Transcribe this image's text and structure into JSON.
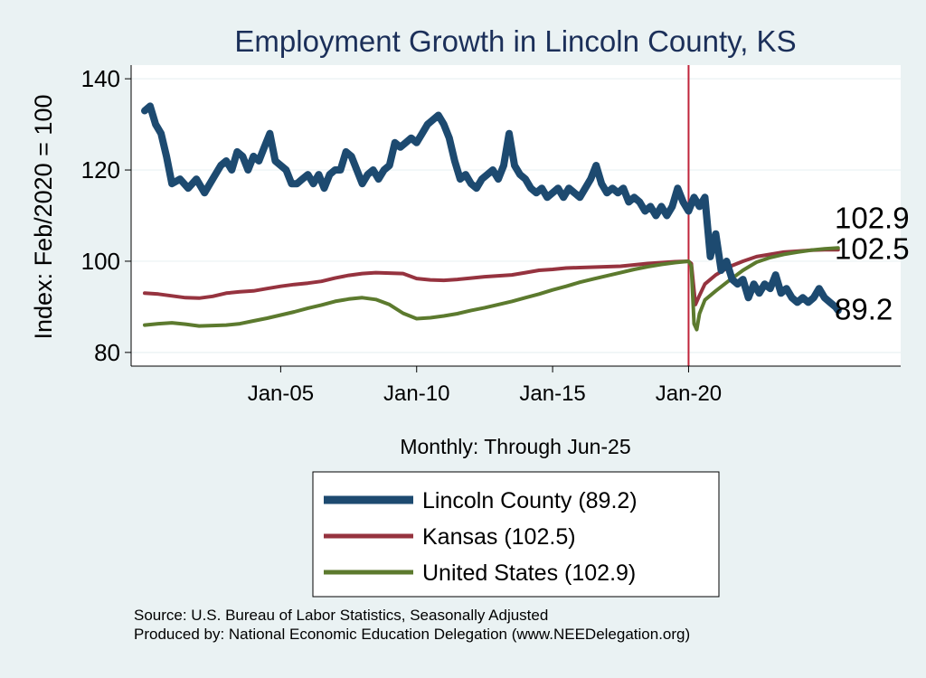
{
  "chart_data": {
    "type": "line",
    "title": "Employment Growth in Lincoln  County, KS",
    "xlabel": "Monthly: Through Jun-25",
    "ylabel": "Index: Feb/2020 = 100",
    "ylim": [
      77,
      143
    ],
    "xlim": [
      1999.5,
      2027.8
    ],
    "yticks": [
      80,
      100,
      120,
      140
    ],
    "xticks": [
      {
        "label": "Jan-05",
        "value": 2005.0
      },
      {
        "label": "Jan-10",
        "value": 2010.0
      },
      {
        "label": "Jan-15",
        "value": 2015.0
      },
      {
        "label": "Jan-20",
        "value": 2020.0
      }
    ],
    "grid": true,
    "reference_line": {
      "x": 2020.0,
      "color": "#c0243b"
    },
    "legend_position": "bottom",
    "series": [
      {
        "name": "Lincoln  County",
        "legend_label": "Lincoln  County (89.2)",
        "end_label": "89.2",
        "color": "#1d4a70",
        "width": 8,
        "points": [
          [
            2000.0,
            133
          ],
          [
            2000.2,
            134
          ],
          [
            2000.4,
            130
          ],
          [
            2000.6,
            128
          ],
          [
            2000.8,
            123
          ],
          [
            2001.0,
            117
          ],
          [
            2001.3,
            118
          ],
          [
            2001.6,
            116
          ],
          [
            2001.9,
            118
          ],
          [
            2002.2,
            115
          ],
          [
            2002.5,
            118
          ],
          [
            2002.8,
            121
          ],
          [
            2003.0,
            122
          ],
          [
            2003.2,
            120
          ],
          [
            2003.4,
            124
          ],
          [
            2003.6,
            123
          ],
          [
            2003.8,
            120
          ],
          [
            2004.0,
            123
          ],
          [
            2004.2,
            122
          ],
          [
            2004.4,
            125
          ],
          [
            2004.6,
            128
          ],
          [
            2004.8,
            122
          ],
          [
            2005.0,
            121
          ],
          [
            2005.2,
            120
          ],
          [
            2005.4,
            117
          ],
          [
            2005.6,
            117
          ],
          [
            2005.8,
            118
          ],
          [
            2006.0,
            119
          ],
          [
            2006.2,
            117
          ],
          [
            2006.4,
            119
          ],
          [
            2006.6,
            116
          ],
          [
            2006.8,
            119
          ],
          [
            2007.0,
            120
          ],
          [
            2007.2,
            120
          ],
          [
            2007.4,
            124
          ],
          [
            2007.6,
            123
          ],
          [
            2007.8,
            120
          ],
          [
            2008.0,
            117
          ],
          [
            2008.2,
            119
          ],
          [
            2008.4,
            120
          ],
          [
            2008.6,
            118
          ],
          [
            2008.8,
            120
          ],
          [
            2009.0,
            121
          ],
          [
            2009.2,
            126
          ],
          [
            2009.4,
            125
          ],
          [
            2009.6,
            126
          ],
          [
            2009.8,
            127
          ],
          [
            2010.0,
            126
          ],
          [
            2010.2,
            128
          ],
          [
            2010.4,
            130
          ],
          [
            2010.6,
            131
          ],
          [
            2010.8,
            132
          ],
          [
            2011.0,
            130
          ],
          [
            2011.2,
            127
          ],
          [
            2011.4,
            122
          ],
          [
            2011.6,
            118
          ],
          [
            2011.8,
            119
          ],
          [
            2012.0,
            117
          ],
          [
            2012.2,
            116
          ],
          [
            2012.4,
            118
          ],
          [
            2012.6,
            119
          ],
          [
            2012.8,
            120
          ],
          [
            2013.0,
            118
          ],
          [
            2013.2,
            121
          ],
          [
            2013.4,
            128
          ],
          [
            2013.6,
            121
          ],
          [
            2013.8,
            119
          ],
          [
            2014.0,
            118
          ],
          [
            2014.2,
            116
          ],
          [
            2014.4,
            115
          ],
          [
            2014.6,
            116
          ],
          [
            2014.8,
            114
          ],
          [
            2015.0,
            115
          ],
          [
            2015.2,
            116
          ],
          [
            2015.4,
            114
          ],
          [
            2015.6,
            116
          ],
          [
            2015.8,
            115
          ],
          [
            2016.0,
            114
          ],
          [
            2016.2,
            116
          ],
          [
            2016.4,
            118
          ],
          [
            2016.6,
            121
          ],
          [
            2016.8,
            117
          ],
          [
            2017.0,
            115
          ],
          [
            2017.2,
            116
          ],
          [
            2017.4,
            115
          ],
          [
            2017.6,
            116
          ],
          [
            2017.8,
            113
          ],
          [
            2018.0,
            114
          ],
          [
            2018.2,
            113
          ],
          [
            2018.4,
            111
          ],
          [
            2018.6,
            112
          ],
          [
            2018.8,
            110
          ],
          [
            2019.0,
            112
          ],
          [
            2019.2,
            110
          ],
          [
            2019.4,
            112
          ],
          [
            2019.6,
            116
          ],
          [
            2019.8,
            113
          ],
          [
            2020.0,
            111
          ],
          [
            2020.2,
            114
          ],
          [
            2020.4,
            112
          ],
          [
            2020.6,
            114
          ],
          [
            2020.8,
            101
          ],
          [
            2021.0,
            106
          ],
          [
            2021.2,
            98
          ],
          [
            2021.4,
            100
          ],
          [
            2021.6,
            96
          ],
          [
            2021.8,
            95
          ],
          [
            2022.0,
            96
          ],
          [
            2022.2,
            92
          ],
          [
            2022.4,
            95
          ],
          [
            2022.6,
            93
          ],
          [
            2022.8,
            95
          ],
          [
            2023.0,
            94
          ],
          [
            2023.2,
            97
          ],
          [
            2023.4,
            93
          ],
          [
            2023.6,
            94
          ],
          [
            2023.8,
            92
          ],
          [
            2024.0,
            91
          ],
          [
            2024.2,
            92
          ],
          [
            2024.4,
            91
          ],
          [
            2024.6,
            92
          ],
          [
            2024.8,
            94
          ],
          [
            2025.0,
            92
          ],
          [
            2025.2,
            91
          ],
          [
            2025.4,
            90
          ],
          [
            2025.5,
            89.2
          ]
        ]
      },
      {
        "name": "Kansas",
        "legend_label": "Kansas (102.5)",
        "end_label": "102.5",
        "color": "#96333f",
        "width": 4,
        "points": [
          [
            2000.0,
            93
          ],
          [
            2000.5,
            92.8
          ],
          [
            2001.0,
            92.4
          ],
          [
            2001.5,
            92.0
          ],
          [
            2002.0,
            91.9
          ],
          [
            2002.5,
            92.3
          ],
          [
            2003.0,
            93.0
          ],
          [
            2003.5,
            93.3
          ],
          [
            2004.0,
            93.5
          ],
          [
            2004.5,
            94.0
          ],
          [
            2005.0,
            94.5
          ],
          [
            2005.5,
            94.9
          ],
          [
            2006.0,
            95.2
          ],
          [
            2006.5,
            95.6
          ],
          [
            2007.0,
            96.3
          ],
          [
            2007.5,
            96.9
          ],
          [
            2008.0,
            97.3
          ],
          [
            2008.5,
            97.5
          ],
          [
            2009.0,
            97.4
          ],
          [
            2009.5,
            97.3
          ],
          [
            2010.0,
            96.2
          ],
          [
            2010.5,
            95.9
          ],
          [
            2011.0,
            95.8
          ],
          [
            2011.5,
            96.0
          ],
          [
            2012.0,
            96.3
          ],
          [
            2012.5,
            96.6
          ],
          [
            2013.0,
            96.8
          ],
          [
            2013.5,
            97.0
          ],
          [
            2014.0,
            97.5
          ],
          [
            2014.5,
            98.0
          ],
          [
            2015.0,
            98.2
          ],
          [
            2015.5,
            98.5
          ],
          [
            2016.0,
            98.6
          ],
          [
            2016.5,
            98.7
          ],
          [
            2017.0,
            98.8
          ],
          [
            2017.5,
            98.9
          ],
          [
            2018.0,
            99.2
          ],
          [
            2018.5,
            99.5
          ],
          [
            2019.0,
            99.7
          ],
          [
            2019.5,
            99.9
          ],
          [
            2020.0,
            100.0
          ],
          [
            2020.1,
            99.5
          ],
          [
            2020.25,
            90.5
          ],
          [
            2020.4,
            92.5
          ],
          [
            2020.6,
            95.0
          ],
          [
            2021.0,
            97.0
          ],
          [
            2021.5,
            98.8
          ],
          [
            2022.0,
            100.0
          ],
          [
            2022.5,
            101.0
          ],
          [
            2023.0,
            101.5
          ],
          [
            2023.5,
            102.0
          ],
          [
            2024.0,
            102.2
          ],
          [
            2024.5,
            102.4
          ],
          [
            2025.0,
            102.5
          ],
          [
            2025.5,
            102.5
          ]
        ]
      },
      {
        "name": "United States",
        "legend_label": "United States (102.9)",
        "end_label": "102.9",
        "color": "#5c7a2e",
        "width": 4,
        "points": [
          [
            2000.0,
            86.0
          ],
          [
            2000.5,
            86.3
          ],
          [
            2001.0,
            86.5
          ],
          [
            2001.5,
            86.2
          ],
          [
            2002.0,
            85.8
          ],
          [
            2002.5,
            85.9
          ],
          [
            2003.0,
            86.0
          ],
          [
            2003.5,
            86.3
          ],
          [
            2004.0,
            86.9
          ],
          [
            2004.5,
            87.5
          ],
          [
            2005.0,
            88.2
          ],
          [
            2005.5,
            88.9
          ],
          [
            2006.0,
            89.7
          ],
          [
            2006.5,
            90.4
          ],
          [
            2007.0,
            91.2
          ],
          [
            2007.5,
            91.7
          ],
          [
            2008.0,
            92.0
          ],
          [
            2008.5,
            91.6
          ],
          [
            2009.0,
            90.5
          ],
          [
            2009.5,
            88.6
          ],
          [
            2010.0,
            87.4
          ],
          [
            2010.5,
            87.6
          ],
          [
            2011.0,
            88.0
          ],
          [
            2011.5,
            88.5
          ],
          [
            2012.0,
            89.2
          ],
          [
            2012.5,
            89.8
          ],
          [
            2013.0,
            90.5
          ],
          [
            2013.5,
            91.2
          ],
          [
            2014.0,
            92.0
          ],
          [
            2014.5,
            92.8
          ],
          [
            2015.0,
            93.7
          ],
          [
            2015.5,
            94.5
          ],
          [
            2016.0,
            95.4
          ],
          [
            2016.5,
            96.1
          ],
          [
            2017.0,
            96.8
          ],
          [
            2017.5,
            97.5
          ],
          [
            2018.0,
            98.2
          ],
          [
            2018.5,
            98.8
          ],
          [
            2019.0,
            99.3
          ],
          [
            2019.5,
            99.7
          ],
          [
            2020.0,
            100.0
          ],
          [
            2020.1,
            99.0
          ],
          [
            2020.2,
            86.3
          ],
          [
            2020.3,
            85.0
          ],
          [
            2020.4,
            88.5
          ],
          [
            2020.6,
            91.5
          ],
          [
            2021.0,
            93.5
          ],
          [
            2021.5,
            95.8
          ],
          [
            2022.0,
            98.0
          ],
          [
            2022.5,
            99.8
          ],
          [
            2023.0,
            100.8
          ],
          [
            2023.5,
            101.5
          ],
          [
            2024.0,
            102.0
          ],
          [
            2024.5,
            102.4
          ],
          [
            2025.0,
            102.7
          ],
          [
            2025.5,
            102.9
          ]
        ]
      }
    ]
  },
  "footer": {
    "source": "Source: U.S. Bureau of Labor Statistics, Seasonally Adjusted",
    "produced_by": "Produced by: National Economic Education Delegation (www.NEEDelegation.org)"
  }
}
